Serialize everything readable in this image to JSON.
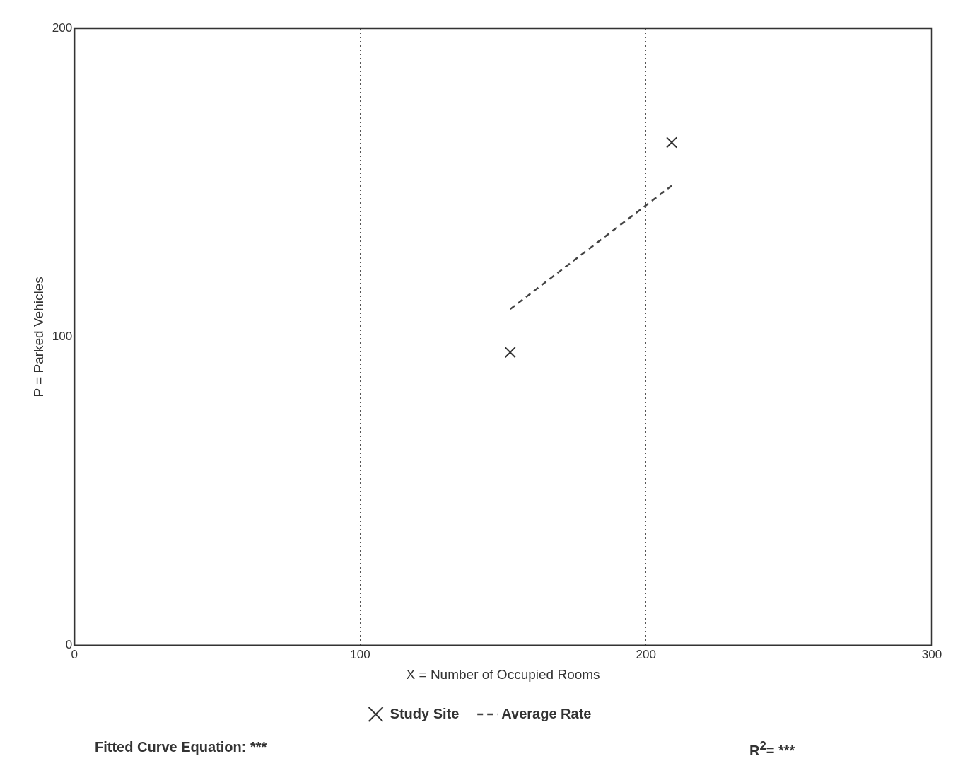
{
  "chart_data": {
    "type": "scatter",
    "xlabel": "X = Number of Occupied Rooms",
    "ylabel": "P = Parked Vehicles",
    "xlim": [
      0,
      300
    ],
    "xticks": [
      0,
      100,
      200,
      300
    ],
    "ylim": [
      0,
      200
    ],
    "yticks": [
      0,
      100,
      200
    ],
    "grid": true,
    "legend": "bottom",
    "marker": "cross",
    "x": [
      152.5,
      209
    ],
    "series": [
      {
        "name": "Study Site",
        "color": "#333333",
        "values": [
          95,
          163
        ]
      },
      {
        "name": "Average Rate",
        "type": "line",
        "color": "#444444",
        "line_style": "dashed",
        "marker": "none",
        "values": [
          109,
          149
        ]
      }
    ],
    "annotations": [
      "Fitted Curve Equation: ***",
      "R$^{2}$= ***"
    ]
  }
}
